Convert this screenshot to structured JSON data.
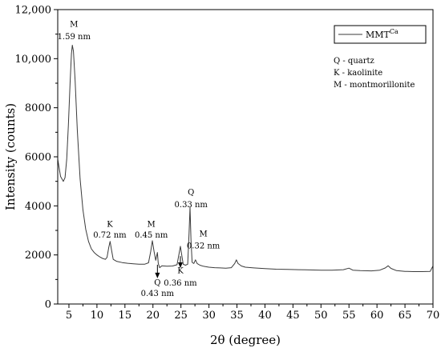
{
  "chart_data": {
    "type": "line",
    "title": "",
    "xlabel": "2θ (degree)",
    "ylabel": "Intensity (counts)",
    "xlim": [
      3,
      70
    ],
    "ylim": [
      0,
      12000
    ],
    "x_ticks": [
      5,
      10,
      15,
      20,
      25,
      30,
      35,
      40,
      45,
      50,
      55,
      60,
      65,
      70
    ],
    "y_ticks": [
      0,
      2000,
      4000,
      6000,
      8000,
      10000,
      12000
    ],
    "x_tick_labels": [
      "5",
      "10",
      "15",
      "20",
      "25",
      "30",
      "35",
      "40",
      "45",
      "50",
      "55",
      "60",
      "65",
      "70"
    ],
    "y_tick_labels": [
      "0",
      "2000",
      "4000",
      "6000",
      "8000",
      "10,000",
      "12,000"
    ],
    "grid": false,
    "legend": {
      "placement": "top-right",
      "entry_main": "MMT",
      "entry_sup": "Ca"
    },
    "key_lines": [
      "Q - quartz",
      "K - kaolinite",
      "M - montmorillonite"
    ],
    "series": [
      {
        "color": "#3a3a3a",
        "points": [
          [
            3.0,
            5900
          ],
          [
            3.5,
            5200
          ],
          [
            4.0,
            5000
          ],
          [
            4.3,
            5150
          ],
          [
            4.6,
            5900
          ],
          [
            4.9,
            7300
          ],
          [
            5.2,
            9000
          ],
          [
            5.45,
            10200
          ],
          [
            5.6,
            10550
          ],
          [
            5.8,
            10300
          ],
          [
            6.1,
            9100
          ],
          [
            6.5,
            7100
          ],
          [
            7.0,
            5100
          ],
          [
            7.5,
            3850
          ],
          [
            8.0,
            3050
          ],
          [
            8.5,
            2550
          ],
          [
            9.0,
            2250
          ],
          [
            9.5,
            2100
          ],
          [
            10.0,
            2000
          ],
          [
            10.5,
            1920
          ],
          [
            11.0,
            1860
          ],
          [
            11.5,
            1820
          ],
          [
            11.8,
            1900
          ],
          [
            12.1,
            2300
          ],
          [
            12.35,
            2550
          ],
          [
            12.6,
            2200
          ],
          [
            12.9,
            1820
          ],
          [
            13.5,
            1740
          ],
          [
            14.5,
            1690
          ],
          [
            15.5,
            1660
          ],
          [
            16.5,
            1640
          ],
          [
            17.5,
            1620
          ],
          [
            18.5,
            1620
          ],
          [
            19.2,
            1680
          ],
          [
            19.6,
            2150
          ],
          [
            19.9,
            2580
          ],
          [
            20.2,
            2150
          ],
          [
            20.5,
            1780
          ],
          [
            20.8,
            2100
          ],
          [
            20.95,
            1650
          ],
          [
            21.2,
            1480
          ],
          [
            21.6,
            1560
          ],
          [
            22.5,
            1540
          ],
          [
            23.5,
            1550
          ],
          [
            24.3,
            1600
          ],
          [
            24.7,
            2100
          ],
          [
            24.9,
            2350
          ],
          [
            25.1,
            2050
          ],
          [
            25.4,
            1620
          ],
          [
            25.8,
            1580
          ],
          [
            26.2,
            1620
          ],
          [
            26.45,
            2900
          ],
          [
            26.62,
            3950
          ],
          [
            26.8,
            2600
          ],
          [
            27.0,
            1700
          ],
          [
            27.3,
            1650
          ],
          [
            27.6,
            1800
          ],
          [
            27.9,
            1650
          ],
          [
            28.4,
            1580
          ],
          [
            29.0,
            1540
          ],
          [
            30.0,
            1500
          ],
          [
            31.0,
            1480
          ],
          [
            32.0,
            1470
          ],
          [
            33.0,
            1460
          ],
          [
            34.0,
            1480
          ],
          [
            34.6,
            1650
          ],
          [
            34.9,
            1800
          ],
          [
            35.2,
            1650
          ],
          [
            35.8,
            1550
          ],
          [
            36.5,
            1500
          ],
          [
            38.0,
            1470
          ],
          [
            40.0,
            1440
          ],
          [
            42.0,
            1420
          ],
          [
            44.0,
            1410
          ],
          [
            46.0,
            1400
          ],
          [
            48.0,
            1390
          ],
          [
            50.0,
            1380
          ],
          [
            52.0,
            1380
          ],
          [
            54.0,
            1400
          ],
          [
            55.0,
            1460
          ],
          [
            55.7,
            1380
          ],
          [
            57.0,
            1360
          ],
          [
            59.0,
            1350
          ],
          [
            60.5,
            1380
          ],
          [
            61.5,
            1470
          ],
          [
            62.0,
            1560
          ],
          [
            62.5,
            1450
          ],
          [
            63.5,
            1360
          ],
          [
            65.0,
            1330
          ],
          [
            66.5,
            1320
          ],
          [
            68.0,
            1320
          ],
          [
            69.5,
            1330
          ],
          [
            70.0,
            1550
          ]
        ]
      }
    ],
    "annotations": [
      {
        "id": "m1",
        "label": "M",
        "value": "1.59 nm",
        "x": 5.9,
        "y": 11300,
        "y2": 10800
      },
      {
        "id": "k1",
        "label": "K",
        "value": "0.72 nm",
        "x": 12.3,
        "y": 3150,
        "y2": 2700
      },
      {
        "id": "m2",
        "label": "M",
        "value": "0.45 nm",
        "x": 19.7,
        "y": 3150,
        "y2": 2700
      },
      {
        "id": "q1",
        "label": "Q",
        "value": "0.33 nm",
        "x": 26.8,
        "y": 4450,
        "y2": 3950
      },
      {
        "id": "m3",
        "label": "M",
        "value": "0.32 nm",
        "x": 29.0,
        "y": 2750,
        "y2": 2270
      },
      {
        "id": "q2",
        "label": "Q",
        "value": "0.43 nm",
        "x": 20.8,
        "y": 770,
        "y2": 320
      },
      {
        "id": "k2",
        "label": "K",
        "value": "0.36 nm",
        "x": 24.9,
        "y": 1250,
        "y2": 750
      }
    ],
    "arrows": [
      {
        "id": "arrow-q2",
        "x": 20.8,
        "y_from": 1600,
        "y_to": 1080
      },
      {
        "id": "arrow-k2",
        "x": 24.9,
        "y_from": 1950,
        "y_to": 1500
      }
    ]
  }
}
